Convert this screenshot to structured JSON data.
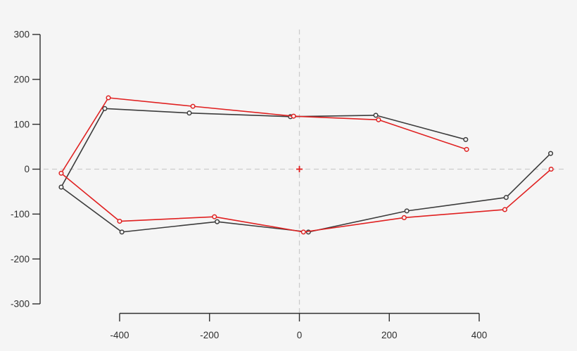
{
  "page": {
    "background_color": "#f5f5f5",
    "axis_color": "#2f2f2f",
    "label_color": "#2f2f2f",
    "refline_color": "#cccccc"
  },
  "chart_data": {
    "type": "line",
    "title": "",
    "xlabel": "",
    "ylabel": "",
    "grid": false,
    "legend": "none",
    "x_axis": {
      "tick_labels": [
        "-400",
        "-200",
        "0",
        "200",
        "400"
      ],
      "tick_values": [
        -400,
        -200,
        0,
        200,
        400
      ],
      "axis_range": [
        -400,
        400
      ]
    },
    "y_axis": {
      "tick_labels": [
        "300",
        "200",
        "100",
        "0",
        "-100",
        "-200",
        "-300"
      ],
      "tick_values": [
        300,
        200,
        100,
        0,
        -100,
        -200,
        -300
      ],
      "axis_range": [
        -300,
        300
      ]
    },
    "reference_lines": [
      {
        "orientation": "horizontal",
        "at": 0,
        "style": "dashed"
      },
      {
        "orientation": "vertical",
        "at": 0,
        "style": "dashed"
      }
    ],
    "origin_marker": {
      "x": 0,
      "y": 0,
      "symbol": "plus",
      "color": "#e02020"
    },
    "series": [
      {
        "name": "black-contour",
        "color": "#3c3c3c",
        "marker": "open-circle",
        "points": [
          [
            370,
            66
          ],
          [
            170,
            120
          ],
          [
            -20,
            117
          ],
          [
            -245,
            125
          ],
          [
            -433,
            135
          ],
          [
            -530,
            -40
          ],
          [
            -395,
            -140
          ],
          [
            -183,
            -117
          ],
          [
            20,
            -140
          ],
          [
            239,
            -93
          ],
          [
            460,
            -63
          ],
          [
            559,
            35
          ]
        ]
      },
      {
        "name": "red-contour",
        "color": "#e02020",
        "marker": "open-circle",
        "points": [
          [
            372,
            44
          ],
          [
            176,
            110
          ],
          [
            -13,
            118
          ],
          [
            -237,
            140
          ],
          [
            -425,
            159
          ],
          [
            -530,
            -9
          ],
          [
            -400,
            -116
          ],
          [
            -189,
            -106
          ],
          [
            9,
            -140
          ],
          [
            233,
            -108
          ],
          [
            457,
            -90
          ],
          [
            560,
            0
          ]
        ]
      }
    ]
  }
}
